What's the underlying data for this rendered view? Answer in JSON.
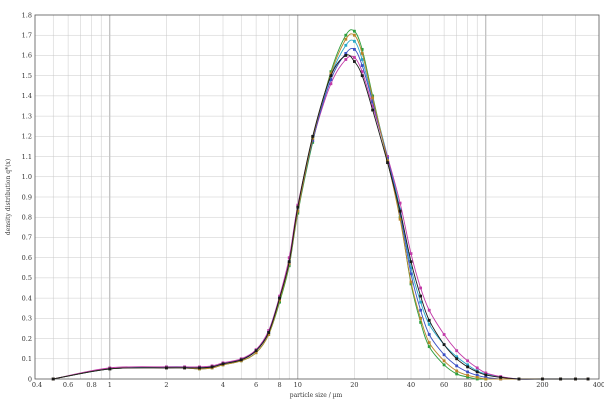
{
  "chart_data": {
    "type": "line",
    "title": "",
    "xlabel": "particle size / µm",
    "ylabel": "density distribution q*(x)",
    "xscale": "log",
    "xlim": [
      0.4,
      400
    ],
    "ylim": [
      0,
      1.8
    ],
    "x_tick_labels": [
      "0.4",
      "0.6",
      "0.8",
      "1",
      "2",
      "4",
      "6",
      "8",
      "10",
      "20",
      "40",
      "60",
      "80",
      "100",
      "200",
      "400"
    ],
    "y_tick_labels": [
      "0",
      "0.1",
      "0.2",
      "0.3",
      "0.4",
      "0.5",
      "0.6",
      "0.7",
      "0.8",
      "0.9",
      "1.0",
      "1.1",
      "1.2",
      "1.3",
      "1.4",
      "1.5",
      "1.6",
      "1.7",
      "1.8"
    ],
    "grid": true,
    "legend": "none",
    "x": [
      0.5,
      1,
      2,
      2.5,
      3,
      3.5,
      4,
      5,
      6,
      7,
      8,
      9,
      10,
      12,
      15,
      18,
      20,
      22,
      25,
      30,
      35,
      40,
      45,
      50,
      60,
      70,
      80,
      90,
      100,
      120,
      150,
      200,
      250,
      300,
      350
    ],
    "series": [
      {
        "color": "#2e9f3e",
        "values": [
          0.0,
          0.05,
          0.055,
          0.055,
          0.05,
          0.055,
          0.07,
          0.09,
          0.13,
          0.22,
          0.38,
          0.56,
          0.82,
          1.17,
          1.52,
          1.7,
          1.72,
          1.63,
          1.4,
          1.08,
          0.8,
          0.47,
          0.28,
          0.16,
          0.07,
          0.025,
          0.01,
          0.0,
          0.0,
          0.0,
          0.0,
          0.0,
          0.0,
          0.0,
          0.0
        ]
      },
      {
        "color": "#2aa8c8",
        "values": [
          0.0,
          0.05,
          0.06,
          0.06,
          0.055,
          0.06,
          0.075,
          0.095,
          0.14,
          0.23,
          0.4,
          0.58,
          0.84,
          1.19,
          1.5,
          1.65,
          1.67,
          1.58,
          1.38,
          1.1,
          0.84,
          0.55,
          0.38,
          0.27,
          0.17,
          0.11,
          0.07,
          0.04,
          0.025,
          0.01,
          0.0,
          0.0,
          0.0,
          0.0,
          0.0
        ]
      },
      {
        "color": "#c23aa8",
        "values": [
          0.0,
          0.055,
          0.06,
          0.06,
          0.06,
          0.065,
          0.08,
          0.1,
          0.145,
          0.24,
          0.41,
          0.6,
          0.86,
          1.18,
          1.46,
          1.58,
          1.59,
          1.52,
          1.35,
          1.1,
          0.87,
          0.62,
          0.45,
          0.34,
          0.22,
          0.14,
          0.09,
          0.055,
          0.03,
          0.012,
          0.0,
          0.0,
          0.0,
          0.0,
          0.0
        ]
      },
      {
        "color": "#3b4fc4",
        "values": [
          0.0,
          0.05,
          0.055,
          0.055,
          0.055,
          0.06,
          0.075,
          0.095,
          0.14,
          0.23,
          0.4,
          0.57,
          0.83,
          1.18,
          1.48,
          1.61,
          1.63,
          1.55,
          1.37,
          1.09,
          0.82,
          0.52,
          0.34,
          0.22,
          0.12,
          0.065,
          0.035,
          0.018,
          0.008,
          0.0,
          0.0,
          0.0,
          0.0,
          0.0,
          0.0
        ]
      },
      {
        "color": "#b8862a",
        "values": [
          0.0,
          0.05,
          0.055,
          0.055,
          0.05,
          0.055,
          0.07,
          0.09,
          0.13,
          0.22,
          0.39,
          0.57,
          0.83,
          1.19,
          1.51,
          1.68,
          1.7,
          1.61,
          1.39,
          1.08,
          0.79,
          0.48,
          0.3,
          0.18,
          0.09,
          0.04,
          0.018,
          0.008,
          0.0,
          0.0,
          0.0,
          0.0,
          0.0,
          0.0,
          0.0
        ]
      },
      {
        "color": "#1a1a1a",
        "values": [
          0.0,
          0.05,
          0.055,
          0.055,
          0.055,
          0.06,
          0.075,
          0.095,
          0.14,
          0.23,
          0.4,
          0.58,
          0.85,
          1.2,
          1.5,
          1.6,
          1.57,
          1.5,
          1.33,
          1.07,
          0.83,
          0.58,
          0.41,
          0.29,
          0.17,
          0.1,
          0.06,
          0.035,
          0.02,
          0.008,
          0.0,
          0.0,
          0.0,
          0.0,
          0.0
        ]
      }
    ]
  }
}
